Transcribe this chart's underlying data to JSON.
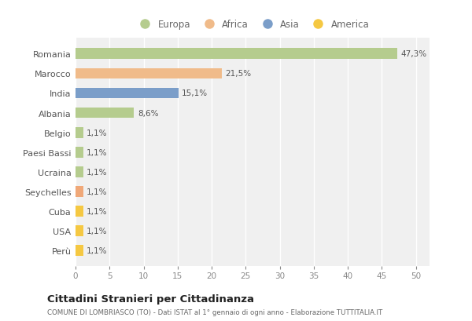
{
  "countries": [
    "Romania",
    "Marocco",
    "India",
    "Albania",
    "Belgio",
    "Paesi Bassi",
    "Ucraina",
    "Seychelles",
    "Cuba",
    "USA",
    "Perù"
  ],
  "values": [
    47.3,
    21.5,
    15.1,
    8.6,
    1.1,
    1.1,
    1.1,
    1.1,
    1.1,
    1.1,
    1.1
  ],
  "labels": [
    "47,3%",
    "21,5%",
    "15,1%",
    "8,6%",
    "1,1%",
    "1,1%",
    "1,1%",
    "1,1%",
    "1,1%",
    "1,1%",
    "1,1%"
  ],
  "colors": [
    "#b5cc8e",
    "#f0bb8a",
    "#7b9ec9",
    "#b5cc8e",
    "#b5cc8e",
    "#b5cc8e",
    "#b5cc8e",
    "#f0a878",
    "#f5c842",
    "#f5c842",
    "#f5c842"
  ],
  "legend_colors": [
    "#b5cc8e",
    "#f0bb8a",
    "#7b9ec9",
    "#f5c842"
  ],
  "legend_labels": [
    "Europa",
    "Africa",
    "Asia",
    "America"
  ],
  "title": "Cittadini Stranieri per Cittadinanza",
  "subtitle": "COMUNE DI LOMBRIASCO (TO) - Dati ISTAT al 1° gennaio di ogni anno - Elaborazione TUTTITALIA.IT",
  "xlim": [
    0,
    52
  ],
  "xticks": [
    0,
    5,
    10,
    15,
    20,
    25,
    30,
    35,
    40,
    45,
    50
  ],
  "fig_bg": "#ffffff",
  "plot_bg": "#f0f0f0",
  "grid_color": "#ffffff"
}
